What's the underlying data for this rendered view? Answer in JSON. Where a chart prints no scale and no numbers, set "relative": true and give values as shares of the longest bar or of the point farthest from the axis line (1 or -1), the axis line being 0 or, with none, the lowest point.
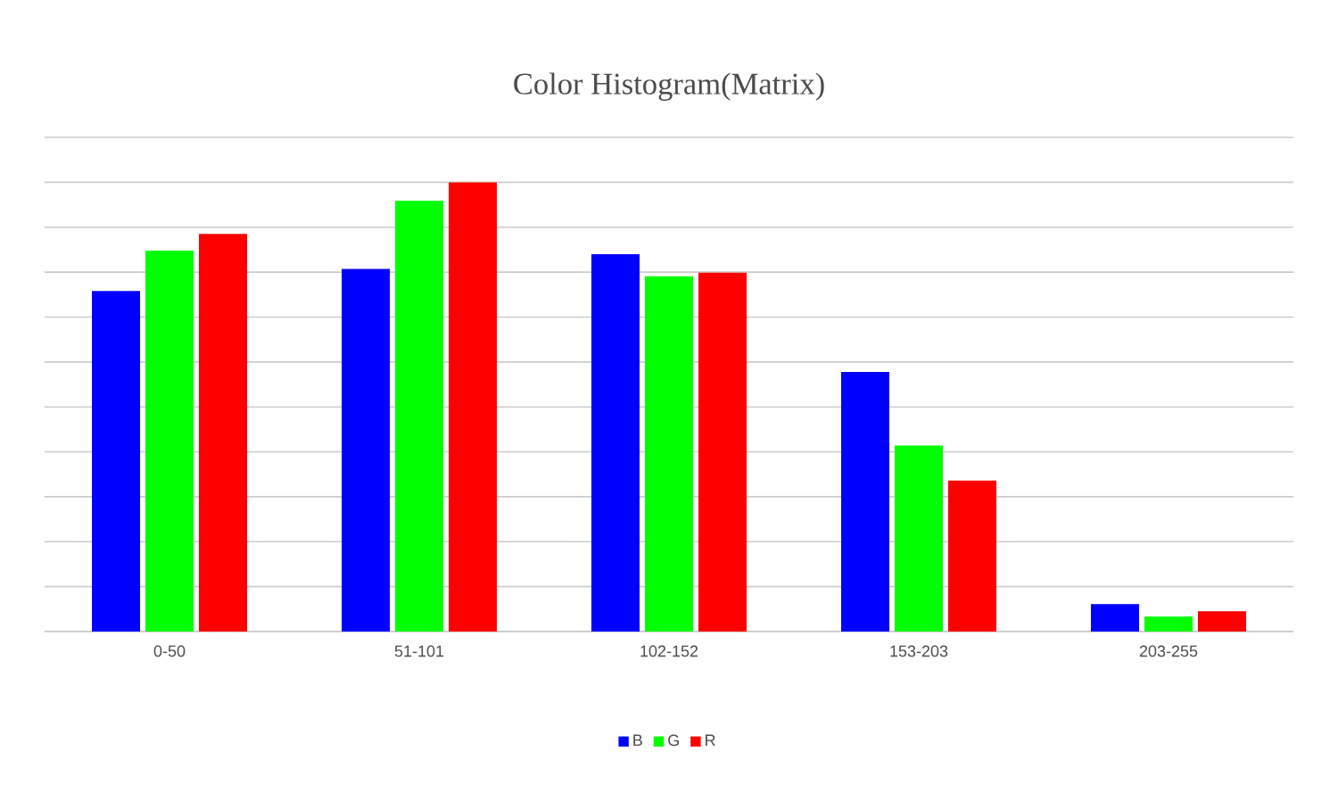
{
  "chart_data": {
    "type": "bar",
    "title": "Color Histogram(Matrix)",
    "relative": true,
    "categories": [
      "0-50",
      "51-101",
      "102-152",
      "153-203",
      "203-255"
    ],
    "series": [
      {
        "name": "B",
        "color": "#0000ff",
        "values": [
          0.758,
          0.807,
          0.84,
          0.578,
          0.061
        ]
      },
      {
        "name": "G",
        "color": "#00ff00",
        "values": [
          0.848,
          0.959,
          0.791,
          0.414,
          0.033
        ]
      },
      {
        "name": "R",
        "color": "#ff0000",
        "values": [
          0.885,
          1,
          0.799,
          0.336,
          0.045
        ]
      }
    ],
    "grid": "y",
    "legend": "bottom"
  }
}
